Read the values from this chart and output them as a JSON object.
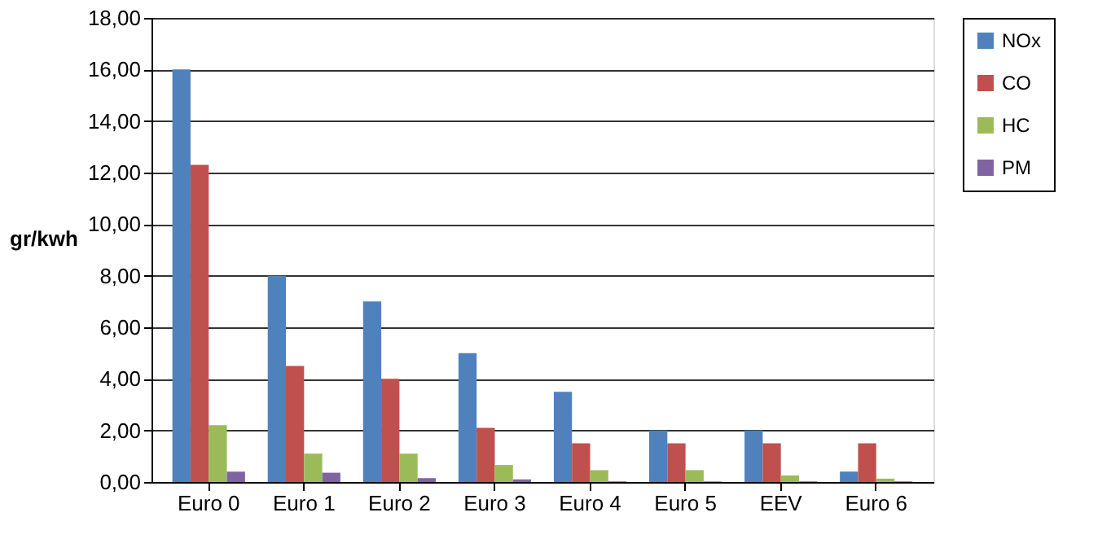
{
  "chart_data": {
    "type": "bar",
    "ylabel": "gr/kwh",
    "categories": [
      "Euro 0",
      "Euro 1",
      "Euro 2",
      "Euro 3",
      "Euro 4",
      "Euro 5",
      "EEV",
      "Euro 6"
    ],
    "series": [
      {
        "name": "NOx",
        "color": "#4f81bd",
        "values": [
          16,
          8,
          7,
          5,
          3.5,
          2,
          2,
          0.4
        ]
      },
      {
        "name": "CO",
        "color": "#c0504d",
        "values": [
          12.3,
          4.5,
          4,
          2.1,
          1.5,
          1.5,
          1.5,
          1.5
        ]
      },
      {
        "name": "HC",
        "color": "#9bbb59",
        "values": [
          2.2,
          1.1,
          1.1,
          0.66,
          0.46,
          0.46,
          0.25,
          0.13
        ]
      },
      {
        "name": "PM",
        "color": "#8064a2",
        "values": [
          0.4,
          0.36,
          0.15,
          0.1,
          0.02,
          0.02,
          0.02,
          0.02
        ]
      }
    ],
    "ylim": [
      0,
      18
    ],
    "yticks": [
      {
        "value": 0,
        "label": "0,00"
      },
      {
        "value": 2,
        "label": "2,00"
      },
      {
        "value": 4,
        "label": "4,00"
      },
      {
        "value": 6,
        "label": "6,00"
      },
      {
        "value": 8,
        "label": "8,00"
      },
      {
        "value": 10,
        "label": "10,00"
      },
      {
        "value": 12,
        "label": "12,00"
      },
      {
        "value": 14,
        "label": "14,00"
      },
      {
        "value": 16,
        "label": "16,00"
      },
      {
        "value": 18,
        "label": "18,00"
      }
    ],
    "grid": "y",
    "legend": "right"
  }
}
